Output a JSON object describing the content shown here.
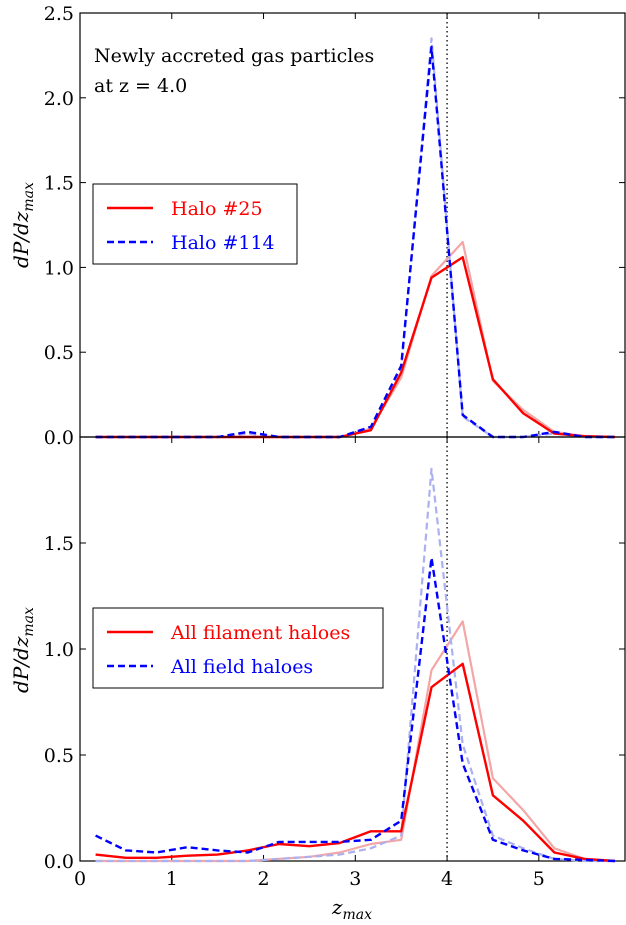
{
  "chart_data": [
    {
      "type": "line",
      "panel": "top",
      "annotation": [
        "Newly accreted gas particles",
        "at z = 4.0"
      ],
      "xlabel": "z_max",
      "ylabel": "dP/dz_max",
      "xlim": [
        0,
        5.95
      ],
      "ylim": [
        0,
        2.5
      ],
      "yticks": [
        "0.0",
        "0.5",
        "1.0",
        "1.5",
        "2.0",
        "2.5"
      ],
      "xticks": [],
      "vline": 4.0,
      "legend_placement": "center-left",
      "series": [
        {
          "name": "Halo #25",
          "color": "#ff0000",
          "style": "solid",
          "x": [
            0.17,
            0.5,
            0.83,
            1.17,
            1.5,
            1.83,
            2.17,
            2.5,
            2.83,
            3.17,
            3.5,
            3.83,
            4.17,
            4.5,
            4.83,
            5.17,
            5.5,
            5.83
          ],
          "y": [
            0,
            0,
            0,
            0,
            0,
            0,
            0,
            0,
            0,
            0.04,
            0.38,
            0.94,
            1.06,
            0.34,
            0.14,
            0.02,
            0.005,
            0
          ]
        },
        {
          "name": "Halo #114",
          "color": "#0000ff",
          "style": "dashed",
          "x": [
            0.17,
            0.5,
            0.83,
            1.17,
            1.5,
            1.83,
            2.17,
            2.5,
            2.83,
            3.17,
            3.5,
            3.83,
            4.17,
            4.5,
            4.83,
            5.17,
            5.5,
            5.83
          ],
          "y": [
            0,
            0,
            0,
            0,
            0,
            0.03,
            0,
            0,
            0,
            0.06,
            0.42,
            2.3,
            0.13,
            0,
            0,
            0.03,
            0,
            0
          ]
        },
        {
          "name": "",
          "color": "#f4a6a6",
          "style": "solid-faint",
          "x": [
            0.17,
            0.5,
            0.83,
            1.17,
            1.5,
            1.83,
            2.17,
            2.5,
            2.83,
            3.17,
            3.5,
            3.83,
            4.17,
            4.5,
            4.83,
            5.17,
            5.5,
            5.83
          ],
          "y": [
            0,
            0,
            0,
            0,
            0,
            0,
            0,
            0,
            0,
            0.05,
            0.35,
            0.95,
            1.15,
            0.33,
            0.16,
            0.03,
            0.005,
            0
          ]
        },
        {
          "name": "",
          "color": "#aab0f0",
          "style": "dashed-faint",
          "x": [
            0.17,
            0.5,
            0.83,
            1.17,
            1.5,
            1.83,
            2.17,
            2.5,
            2.83,
            3.17,
            3.5,
            3.83,
            4.17,
            4.5,
            4.83,
            5.17,
            5.5,
            5.83
          ],
          "y": [
            0,
            0,
            0,
            0,
            0,
            0.02,
            0,
            0,
            0,
            0.05,
            0.4,
            2.35,
            0.12,
            0,
            0,
            0.02,
            0,
            0
          ]
        }
      ]
    },
    {
      "type": "line",
      "panel": "bottom",
      "xlabel": "z_max",
      "ylabel": "dP/dz_max",
      "xlim": [
        0,
        5.95
      ],
      "ylim": [
        0,
        2.0
      ],
      "yticks": [
        "0.0",
        "0.5",
        "1.0",
        "1.5"
      ],
      "xticks": [
        "0",
        "1",
        "2",
        "3",
        "4",
        "5"
      ],
      "vline": 4.0,
      "legend_placement": "center-left",
      "series": [
        {
          "name": "All filament haloes",
          "color": "#ff0000",
          "style": "solid",
          "x": [
            0.17,
            0.5,
            0.83,
            1.17,
            1.5,
            1.83,
            2.17,
            2.5,
            2.83,
            3.17,
            3.5,
            3.83,
            4.17,
            4.5,
            4.83,
            5.17,
            5.5,
            5.83
          ],
          "y": [
            0.03,
            0.015,
            0.015,
            0.025,
            0.03,
            0.05,
            0.08,
            0.07,
            0.085,
            0.14,
            0.14,
            0.82,
            0.93,
            0.31,
            0.19,
            0.04,
            0.01,
            0
          ]
        },
        {
          "name": "All field haloes",
          "color": "#0000ff",
          "style": "dashed",
          "x": [
            0.17,
            0.5,
            0.83,
            1.17,
            1.5,
            1.83,
            2.17,
            2.5,
            2.83,
            3.17,
            3.5,
            3.83,
            4.17,
            4.5,
            4.83,
            5.17,
            5.5,
            5.83
          ],
          "y": [
            0.12,
            0.05,
            0.04,
            0.065,
            0.05,
            0.04,
            0.09,
            0.09,
            0.09,
            0.1,
            0.19,
            1.43,
            0.46,
            0.1,
            0.05,
            0.01,
            0.005,
            0
          ]
        },
        {
          "name": "",
          "color": "#f4a6a6",
          "style": "solid-faint",
          "x": [
            0.17,
            0.5,
            0.83,
            1.17,
            1.5,
            1.83,
            2.17,
            2.5,
            2.83,
            3.17,
            3.5,
            3.83,
            4.17,
            4.5,
            4.83,
            5.17,
            5.5,
            5.83
          ],
          "y": [
            0,
            0,
            0,
            0,
            0,
            0,
            0.01,
            0.02,
            0.04,
            0.08,
            0.1,
            0.9,
            1.13,
            0.39,
            0.24,
            0.06,
            0.01,
            0
          ]
        },
        {
          "name": "",
          "color": "#aab0f0",
          "style": "dashed-faint",
          "x": [
            0.17,
            0.5,
            0.83,
            1.17,
            1.5,
            1.83,
            2.17,
            2.5,
            2.83,
            3.17,
            3.5,
            3.83,
            4.17,
            4.5,
            4.83,
            5.17,
            5.5,
            5.83
          ],
          "y": [
            0,
            0,
            0,
            0,
            0,
            0,
            0.01,
            0.02,
            0.03,
            0.06,
            0.12,
            1.85,
            0.55,
            0.12,
            0.06,
            0.01,
            0,
            0
          ]
        }
      ]
    }
  ]
}
